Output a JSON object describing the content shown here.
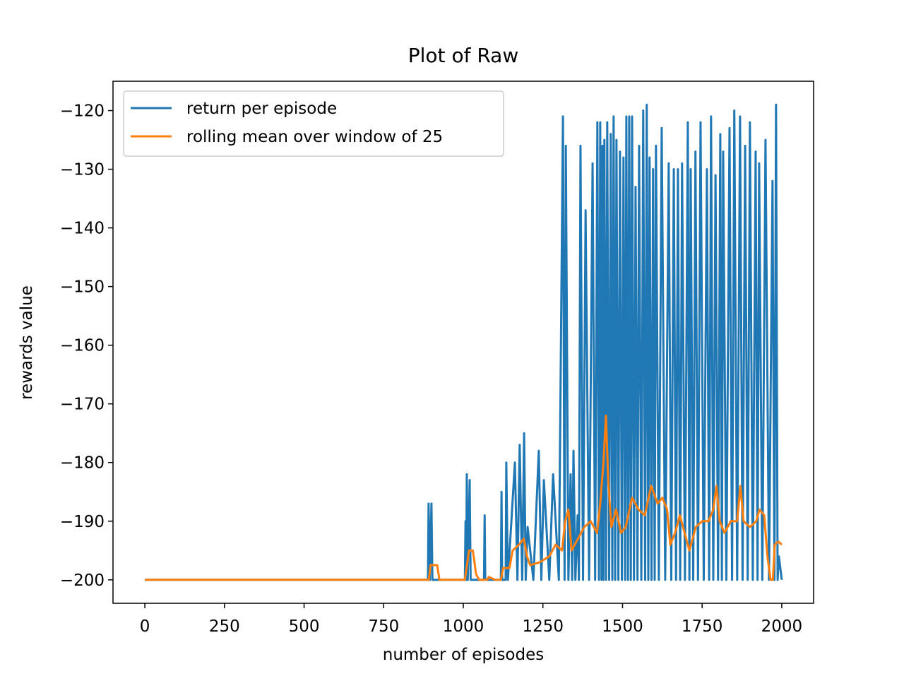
{
  "chart_data": {
    "type": "line",
    "title": "Plot of Raw",
    "x_label": "number of episodes",
    "y_label": "rewards value",
    "xlim": [
      -100,
      2100
    ],
    "ylim": [
      -204,
      -115
    ],
    "xticks": [
      0,
      250,
      500,
      750,
      1000,
      1250,
      1500,
      1750,
      2000
    ],
    "yticks": [
      {
        "value": -200,
        "label": "−200"
      },
      {
        "value": -190,
        "label": "−190"
      },
      {
        "value": -180,
        "label": "−180"
      },
      {
        "value": -170,
        "label": "−170"
      },
      {
        "value": -160,
        "label": "−160"
      },
      {
        "value": -150,
        "label": "−150"
      },
      {
        "value": -140,
        "label": "−140"
      },
      {
        "value": -130,
        "label": "−130"
      },
      {
        "value": -120,
        "label": "−120"
      }
    ],
    "legend": "upper left",
    "series": [
      {
        "name": "return per episode",
        "color": "#1f77b4",
        "x": [
          0,
          889,
          891,
          895,
          900,
          903,
          1005,
          1007,
          1009,
          1011,
          1014,
          1020,
          1023,
          1065,
          1067,
          1069,
          1118,
          1120,
          1122,
          1133,
          1135,
          1140,
          1162,
          1170,
          1177,
          1185,
          1191,
          1196,
          1202,
          1220,
          1237,
          1245,
          1253,
          1270,
          1282,
          1300,
          1313,
          1318,
          1322,
          1330,
          1337,
          1342,
          1346,
          1352,
          1359,
          1363,
          1368,
          1376,
          1384,
          1395,
          1406,
          1414,
          1421,
          1426,
          1430,
          1434,
          1437,
          1440,
          1443,
          1448,
          1452,
          1458,
          1463,
          1468,
          1472,
          1477,
          1481,
          1487,
          1492,
          1498,
          1503,
          1508,
          1512,
          1517,
          1521,
          1526,
          1530,
          1536,
          1541,
          1547,
          1552,
          1559,
          1565,
          1571,
          1576,
          1581,
          1585,
          1591,
          1596,
          1601,
          1605,
          1614,
          1623,
          1634,
          1645,
          1653,
          1661,
          1668,
          1674,
          1681,
          1687,
          1696,
          1705,
          1710,
          1714,
          1722,
          1729,
          1737,
          1745,
          1755,
          1765,
          1772,
          1778,
          1785,
          1792,
          1800,
          1807,
          1812,
          1816,
          1826,
          1836,
          1844,
          1851,
          1860,
          1869,
          1877,
          1885,
          1893,
          1900,
          1909,
          1918,
          1924,
          1929,
          1939,
          1949,
          1960,
          1971,
          1977,
          1982,
          1987,
          1991,
          2000
        ],
        "values": [
          -200,
          -200,
          -187,
          -200,
          -187,
          -200,
          -200,
          -190,
          -200,
          -182,
          -200,
          -183,
          -200,
          -200,
          -189,
          -200,
          -200,
          -185,
          -200,
          -200,
          -180,
          -200,
          -180,
          -200,
          -177,
          -200,
          -175,
          -200,
          -191,
          -200,
          -178,
          -200,
          -183,
          -200,
          -182,
          -200,
          -121,
          -200,
          -126,
          -200,
          -182,
          -200,
          -178,
          -200,
          -189,
          -200,
          -126,
          -200,
          -137,
          -200,
          -129,
          -200,
          -122,
          -200,
          -122,
          -200,
          -126,
          -200,
          -125,
          -200,
          -122,
          -200,
          -124,
          -200,
          -121,
          -200,
          -125,
          -200,
          -127,
          -200,
          -128,
          -200,
          -121,
          -200,
          -121,
          -200,
          -121,
          -200,
          -133,
          -200,
          -126,
          -200,
          -120,
          -200,
          -119,
          -200,
          -128,
          -200,
          -130,
          -200,
          -126,
          -200,
          -123,
          -200,
          -129,
          -200,
          -130,
          -200,
          -130,
          -200,
          -129,
          -200,
          -122,
          -200,
          -130,
          -200,
          -127,
          -200,
          -122,
          -200,
          -130,
          -200,
          -121,
          -200,
          -131,
          -200,
          -124,
          -200,
          -127,
          -200,
          -123,
          -200,
          -120,
          -200,
          -121,
          -200,
          -126,
          -200,
          -122,
          -200,
          -127,
          -200,
          -129,
          -200,
          -125,
          -200,
          -132,
          -200,
          -119,
          -200,
          -196,
          -200
        ]
      },
      {
        "name": "rolling mean over window of 25",
        "color": "#ff7f0e",
        "x": [
          0,
          892,
          897,
          918,
          925,
          1005,
          1018,
          1030,
          1040,
          1050,
          1075,
          1080,
          1100,
          1118,
          1125,
          1145,
          1155,
          1175,
          1190,
          1200,
          1210,
          1240,
          1270,
          1290,
          1310,
          1320,
          1330,
          1340,
          1360,
          1380,
          1400,
          1420,
          1430,
          1440,
          1448,
          1455,
          1465,
          1480,
          1495,
          1510,
          1530,
          1550,
          1570,
          1590,
          1610,
          1625,
          1640,
          1650,
          1665,
          1680,
          1695,
          1710,
          1730,
          1750,
          1770,
          1785,
          1795,
          1805,
          1820,
          1840,
          1860,
          1870,
          1880,
          1900,
          1920,
          1930,
          1945,
          1955,
          1965,
          1972,
          1978,
          1990,
          2000
        ],
        "values": [
          -200,
          -200,
          -197.5,
          -197.5,
          -200,
          -200,
          -195,
          -195,
          -199,
          -200,
          -200,
          -199.5,
          -200,
          -200,
          -198,
          -198,
          -195,
          -194,
          -193,
          -196,
          -197.5,
          -197,
          -196,
          -194,
          -195,
          -190,
          -188,
          -195,
          -193,
          -191,
          -190,
          -192,
          -187,
          -180,
          -172,
          -183,
          -191,
          -188,
          -192,
          -191,
          -186,
          -188,
          -189,
          -184,
          -187,
          -186,
          -188,
          -194,
          -192,
          -189,
          -192,
          -195,
          -191,
          -190,
          -190,
          -188,
          -184,
          -190,
          -192,
          -190,
          -190,
          -184,
          -190,
          -191,
          -190,
          -188,
          -189,
          -196,
          -200,
          -200,
          -194,
          -193.5,
          -194
        ]
      }
    ]
  }
}
